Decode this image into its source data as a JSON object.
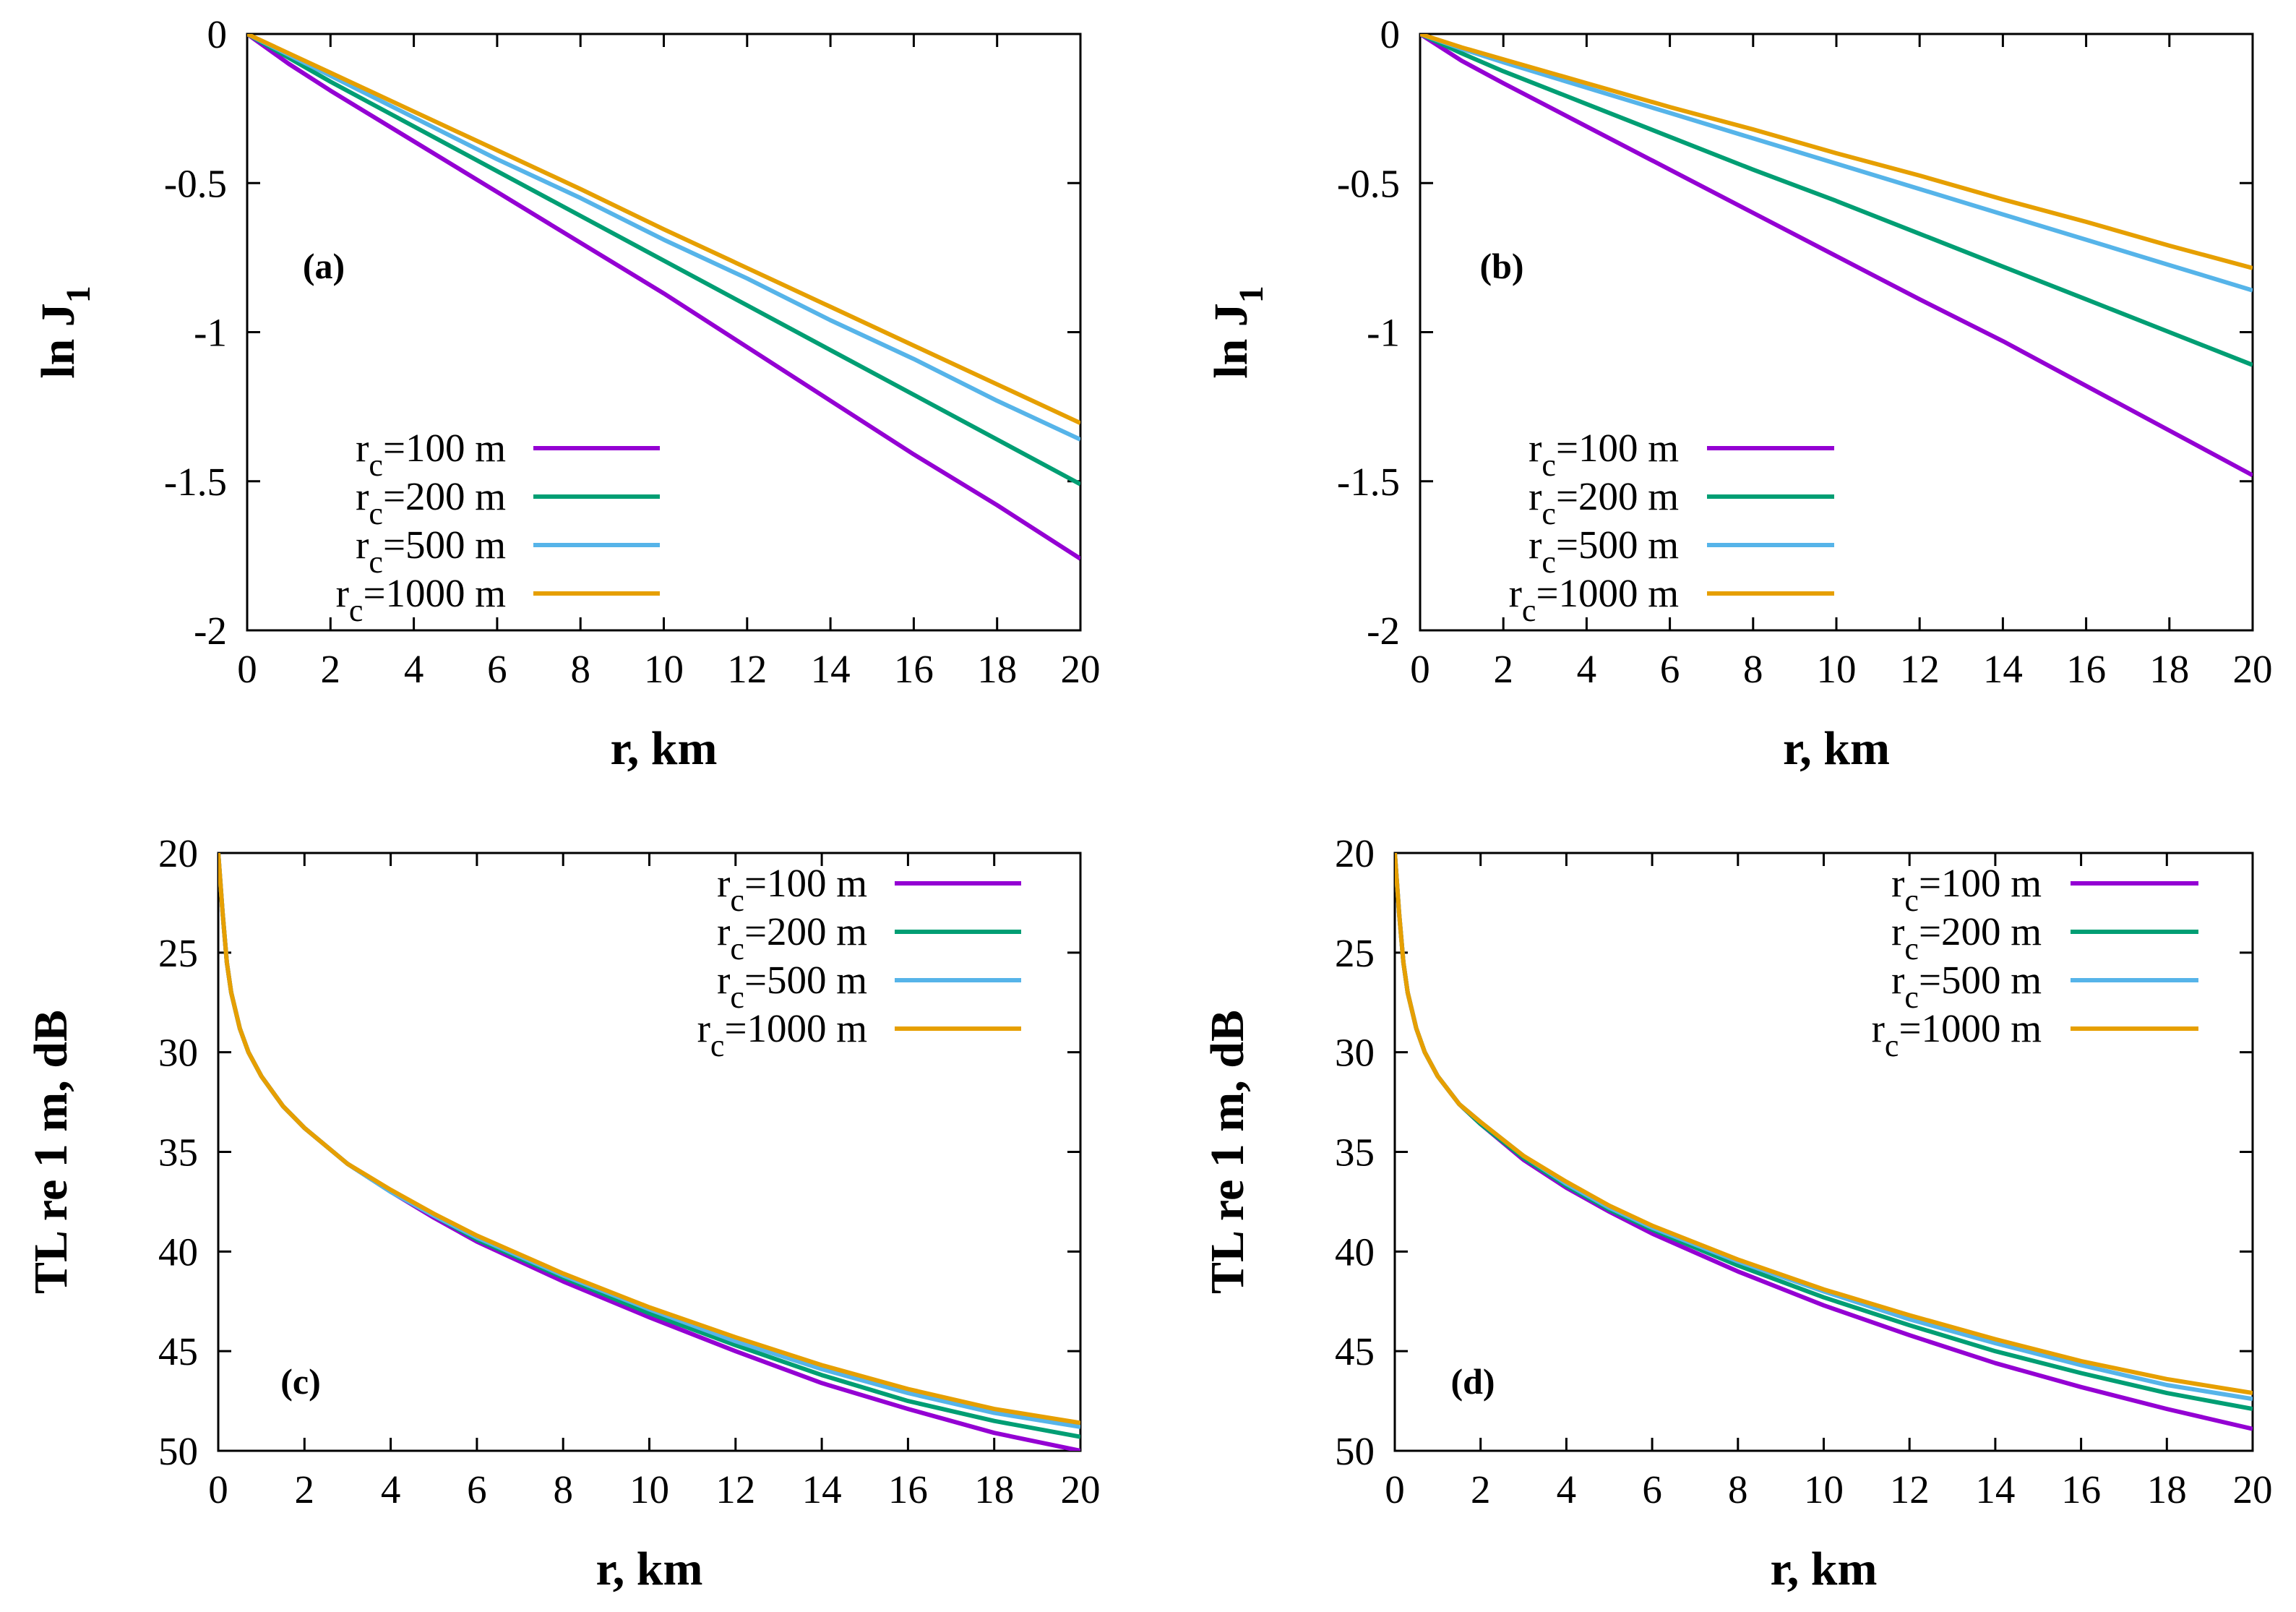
{
  "chart_data": [
    {
      "panel": "(a)",
      "type": "line",
      "xlabel": "r, km",
      "ylabel": "ln J",
      "ylabel_sub": "1",
      "xlim": [
        0,
        20
      ],
      "ylim": [
        -2,
        0
      ],
      "y_inverted": false,
      "xticks": [
        0,
        2,
        4,
        6,
        8,
        10,
        12,
        14,
        16,
        18,
        20
      ],
      "yticks": [
        -2,
        -1.5,
        -1,
        -0.5,
        0
      ],
      "legend": "bottom-left",
      "grid": false,
      "series": [
        {
          "name_main": "r",
          "name_sub": "c",
          "name_rest": "=100 m",
          "color": "#9400d3",
          "x": [
            0,
            1,
            2,
            4,
            6,
            8,
            10,
            12,
            14,
            16,
            18,
            20
          ],
          "y": [
            0,
            -0.1,
            -0.19,
            -0.36,
            -0.53,
            -0.7,
            -0.87,
            -1.05,
            -1.23,
            -1.41,
            -1.58,
            -1.76
          ]
        },
        {
          "name_main": "r",
          "name_sub": "c",
          "name_rest": "=200 m",
          "color": "#009e73",
          "x": [
            0,
            1,
            2,
            4,
            6,
            8,
            10,
            12,
            14,
            16,
            18,
            20
          ],
          "y": [
            0,
            -0.08,
            -0.16,
            -0.31,
            -0.46,
            -0.61,
            -0.76,
            -0.91,
            -1.06,
            -1.21,
            -1.36,
            -1.51
          ]
        },
        {
          "name_main": "r",
          "name_sub": "c",
          "name_rest": "=500 m",
          "color": "#56b4e9",
          "x": [
            0,
            1,
            2,
            4,
            6,
            8,
            10,
            12,
            14,
            16,
            18,
            20
          ],
          "y": [
            0,
            -0.07,
            -0.14,
            -0.28,
            -0.42,
            -0.55,
            -0.69,
            -0.82,
            -0.96,
            -1.09,
            -1.23,
            -1.36
          ]
        },
        {
          "name_main": "r",
          "name_sub": "c",
          "name_rest": "=1000 m",
          "color": "#e69f00",
          "x": [
            0,
            1,
            2,
            4,
            6,
            8,
            10,
            12,
            14,
            16,
            18,
            20
          ],
          "y": [
            0,
            -0.065,
            -0.13,
            -0.26,
            -0.39,
            -0.52,
            -0.655,
            -0.785,
            -0.915,
            -1.045,
            -1.175,
            -1.305
          ]
        }
      ]
    },
    {
      "panel": "(b)",
      "type": "line",
      "xlabel": "r, km",
      "ylabel": "ln J",
      "ylabel_sub": "1",
      "xlim": [
        0,
        20
      ],
      "ylim": [
        -2,
        0
      ],
      "y_inverted": false,
      "xticks": [
        0,
        2,
        4,
        6,
        8,
        10,
        12,
        14,
        16,
        18,
        20
      ],
      "yticks": [
        -2,
        -1.5,
        -1,
        -0.5,
        0
      ],
      "legend": "bottom-left",
      "grid": false,
      "series": [
        {
          "name_main": "r",
          "name_sub": "c",
          "name_rest": "=100 m",
          "color": "#9400d3",
          "x": [
            0,
            1,
            2,
            4,
            6,
            8,
            10,
            12,
            14,
            16,
            18,
            20
          ],
          "y": [
            0,
            -0.09,
            -0.165,
            -0.31,
            -0.455,
            -0.6,
            -0.745,
            -0.89,
            -1.03,
            -1.18,
            -1.33,
            -1.48
          ]
        },
        {
          "name_main": "r",
          "name_sub": "c",
          "name_rest": "=200 m",
          "color": "#009e73",
          "x": [
            0,
            1,
            2,
            4,
            6,
            8,
            10,
            12,
            14,
            16,
            18,
            20
          ],
          "y": [
            0,
            -0.065,
            -0.125,
            -0.235,
            -0.345,
            -0.455,
            -0.56,
            -0.67,
            -0.78,
            -0.89,
            -1.0,
            -1.11
          ]
        },
        {
          "name_main": "r",
          "name_sub": "c",
          "name_rest": "=500 m",
          "color": "#56b4e9",
          "x": [
            0,
            1,
            2,
            4,
            6,
            8,
            10,
            12,
            14,
            16,
            18,
            20
          ],
          "y": [
            0,
            -0.05,
            -0.095,
            -0.18,
            -0.265,
            -0.35,
            -0.435,
            -0.52,
            -0.605,
            -0.69,
            -0.775,
            -0.86
          ]
        },
        {
          "name_main": "r",
          "name_sub": "c",
          "name_rest": "=1000 m",
          "color": "#e69f00",
          "x": [
            0,
            1,
            2,
            4,
            6,
            8,
            10,
            12,
            14,
            16,
            18,
            20
          ],
          "y": [
            0,
            -0.045,
            -0.085,
            -0.165,
            -0.245,
            -0.32,
            -0.4,
            -0.475,
            -0.555,
            -0.63,
            -0.71,
            -0.785
          ]
        }
      ]
    },
    {
      "panel": "(c)",
      "type": "line",
      "xlabel": "r, km",
      "ylabel": "TL re 1 m, dB",
      "ylabel_sub": "",
      "xlim": [
        0,
        20
      ],
      "ylim": [
        20,
        50
      ],
      "y_inverted": true,
      "xticks": [
        0,
        2,
        4,
        6,
        8,
        10,
        12,
        14,
        16,
        18,
        20
      ],
      "yticks": [
        20,
        25,
        30,
        35,
        40,
        45,
        50
      ],
      "legend": "top-right",
      "grid": false,
      "series": [
        {
          "name_main": "r",
          "name_sub": "c",
          "name_rest": "=100 m",
          "color": "#9400d3",
          "x": [
            0,
            0.05,
            0.1,
            0.2,
            0.3,
            0.5,
            0.7,
            1,
            1.5,
            2,
            3,
            4,
            5,
            6,
            8,
            10,
            12,
            14,
            16,
            18,
            20
          ],
          "y": [
            20,
            21.5,
            23,
            25.5,
            27,
            28.8,
            30,
            31.2,
            32.7,
            33.8,
            35.6,
            37.0,
            38.3,
            39.5,
            41.5,
            43.3,
            45.0,
            46.6,
            47.9,
            49.1,
            50.0
          ]
        },
        {
          "name_main": "r",
          "name_sub": "c",
          "name_rest": "=200 m",
          "color": "#009e73",
          "x": [
            0,
            0.05,
            0.1,
            0.2,
            0.3,
            0.5,
            0.7,
            1,
            1.5,
            2,
            3,
            4,
            5,
            6,
            8,
            10,
            12,
            14,
            16,
            18,
            20
          ],
          "y": [
            20,
            21.5,
            23,
            25.5,
            27,
            28.8,
            30,
            31.2,
            32.7,
            33.8,
            35.6,
            37.0,
            38.2,
            39.4,
            41.3,
            43.1,
            44.7,
            46.2,
            47.5,
            48.5,
            49.3
          ]
        },
        {
          "name_main": "r",
          "name_sub": "c",
          "name_rest": "=500 m",
          "color": "#56b4e9",
          "x": [
            0,
            0.05,
            0.1,
            0.2,
            0.3,
            0.5,
            0.7,
            1,
            1.5,
            2,
            3,
            4,
            5,
            6,
            8,
            10,
            12,
            14,
            16,
            18,
            20
          ],
          "y": [
            20,
            21.5,
            23,
            25.5,
            27,
            28.8,
            30,
            31.2,
            32.7,
            33.8,
            35.6,
            37.0,
            38.2,
            39.3,
            41.2,
            42.9,
            44.5,
            45.9,
            47.1,
            48.1,
            48.8
          ]
        },
        {
          "name_main": "r",
          "name_sub": "c",
          "name_rest": "=1000 m",
          "color": "#e69f00",
          "x": [
            0,
            0.05,
            0.1,
            0.2,
            0.3,
            0.5,
            0.7,
            1,
            1.5,
            2,
            3,
            4,
            5,
            6,
            8,
            10,
            12,
            14,
            16,
            18,
            20
          ],
          "y": [
            20,
            21.5,
            23,
            25.5,
            27,
            28.8,
            30,
            31.2,
            32.7,
            33.8,
            35.6,
            36.9,
            38.1,
            39.2,
            41.1,
            42.8,
            44.3,
            45.7,
            46.9,
            47.9,
            48.6
          ]
        }
      ]
    },
    {
      "panel": "(d)",
      "type": "line",
      "xlabel": "r, km",
      "ylabel": "TL re 1 m, dB",
      "ylabel_sub": "",
      "xlim": [
        0,
        20
      ],
      "ylim": [
        20,
        50
      ],
      "y_inverted": true,
      "xticks": [
        0,
        2,
        4,
        6,
        8,
        10,
        12,
        14,
        16,
        18,
        20
      ],
      "yticks": [
        20,
        25,
        30,
        35,
        40,
        45,
        50
      ],
      "legend": "top-right",
      "grid": false,
      "series": [
        {
          "name_main": "r",
          "name_sub": "c",
          "name_rest": "=100 m",
          "color": "#9400d3",
          "x": [
            0,
            0.05,
            0.1,
            0.2,
            0.3,
            0.5,
            0.7,
            1,
            1.5,
            2,
            3,
            4,
            5,
            6,
            8,
            10,
            12,
            14,
            16,
            18,
            20
          ],
          "y": [
            20,
            21.5,
            23,
            25.5,
            27,
            28.8,
            30,
            31.2,
            32.6,
            33.6,
            35.4,
            36.8,
            38.0,
            39.1,
            41.0,
            42.7,
            44.2,
            45.6,
            46.8,
            47.9,
            48.9
          ]
        },
        {
          "name_main": "r",
          "name_sub": "c",
          "name_rest": "=200 m",
          "color": "#009e73",
          "x": [
            0,
            0.05,
            0.1,
            0.2,
            0.3,
            0.5,
            0.7,
            1,
            1.5,
            2,
            3,
            4,
            5,
            6,
            8,
            10,
            12,
            14,
            16,
            18,
            20
          ],
          "y": [
            20,
            21.5,
            23,
            25.5,
            27,
            28.8,
            30,
            31.2,
            32.6,
            33.6,
            35.3,
            36.7,
            37.9,
            38.9,
            40.7,
            42.3,
            43.7,
            45.0,
            46.1,
            47.1,
            47.9
          ]
        },
        {
          "name_main": "r",
          "name_sub": "c",
          "name_rest": "=500 m",
          "color": "#56b4e9",
          "x": [
            0,
            0.05,
            0.1,
            0.2,
            0.3,
            0.5,
            0.7,
            1,
            1.5,
            2,
            3,
            4,
            5,
            6,
            8,
            10,
            12,
            14,
            16,
            18,
            20
          ],
          "y": [
            20,
            21.5,
            23,
            25.5,
            27,
            28.8,
            30,
            31.2,
            32.6,
            33.5,
            35.2,
            36.6,
            37.8,
            38.8,
            40.5,
            42.0,
            43.4,
            44.6,
            45.7,
            46.7,
            47.4
          ]
        },
        {
          "name_main": "r",
          "name_sub": "c",
          "name_rest": "=1000 m",
          "color": "#e69f00",
          "x": [
            0,
            0.05,
            0.1,
            0.2,
            0.3,
            0.5,
            0.7,
            1,
            1.5,
            2,
            3,
            4,
            5,
            6,
            8,
            10,
            12,
            14,
            16,
            18,
            20
          ],
          "y": [
            20,
            21.5,
            23,
            25.5,
            27,
            28.8,
            30,
            31.2,
            32.6,
            33.5,
            35.2,
            36.5,
            37.7,
            38.7,
            40.4,
            41.9,
            43.2,
            44.4,
            45.5,
            46.4,
            47.1
          ]
        }
      ]
    }
  ]
}
